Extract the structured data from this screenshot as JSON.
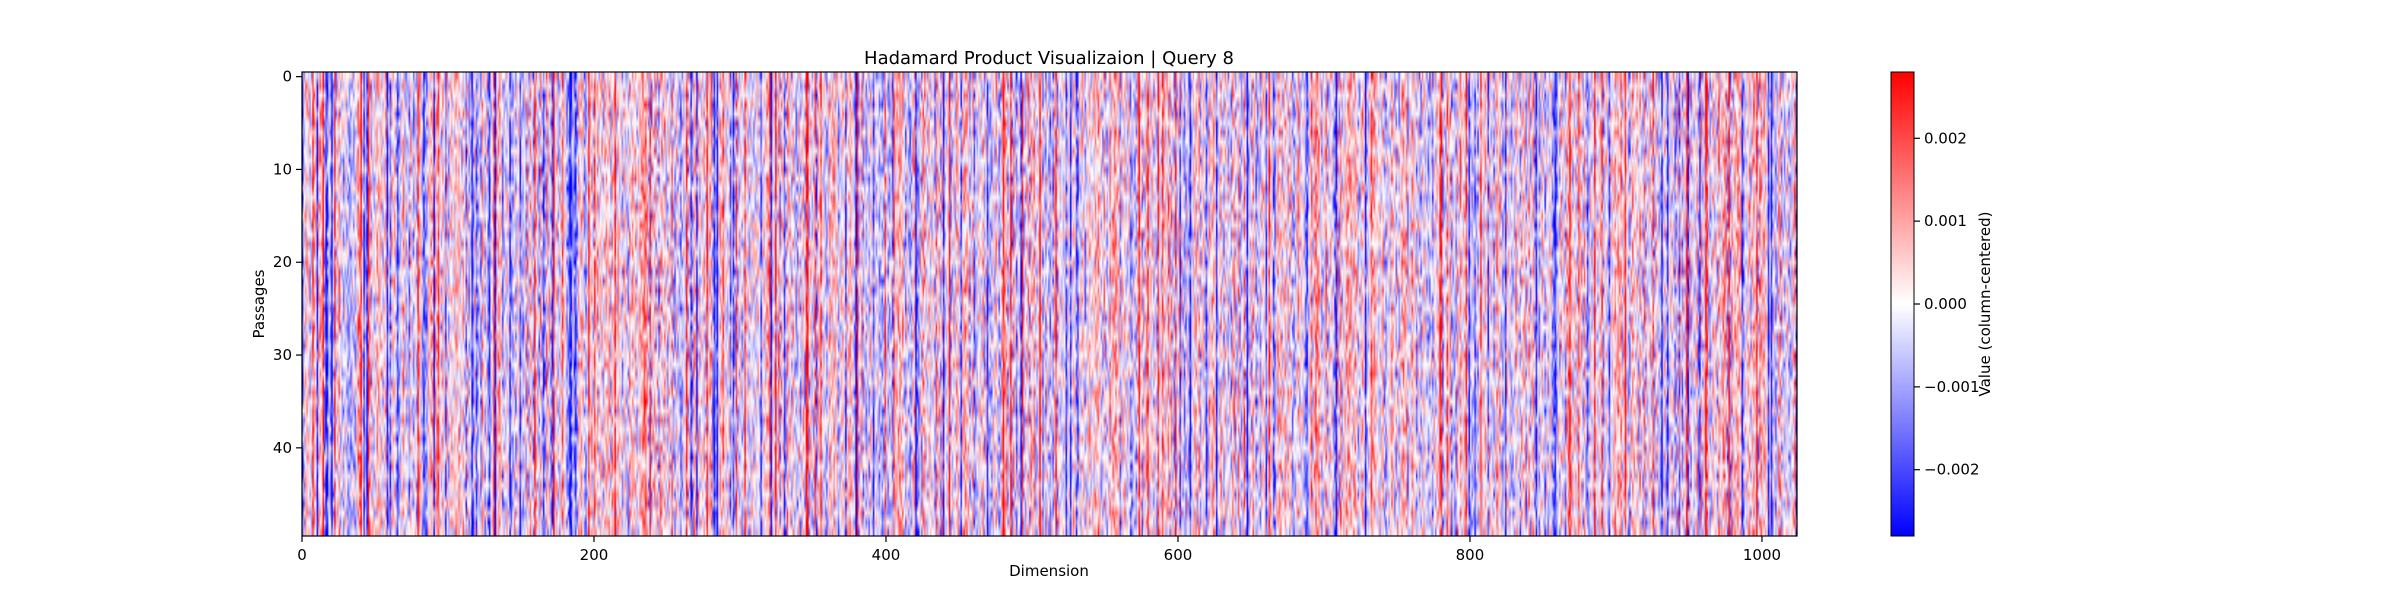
{
  "chart_data": {
    "type": "heatmap",
    "title": "Hadamard Product Visualizaion | Query 8",
    "xlabel": "Dimension",
    "ylabel": "Passages",
    "x_range": [
      0,
      1024
    ],
    "y_range": [
      0,
      50
    ],
    "y_inverted": true,
    "x_ticks": [
      "0",
      "200",
      "400",
      "600",
      "800",
      "1000"
    ],
    "y_ticks": [
      "0",
      "10",
      "20",
      "30",
      "40"
    ],
    "colormap": "bwr",
    "color_low": "#0000ff",
    "color_mid": "#ffffff",
    "color_high": "#ff0000",
    "colorbar": {
      "label": "Value (column-centered)",
      "range": [
        -0.0028,
        0.0028
      ],
      "ticks": [
        "0.002",
        "0.001",
        "0.000",
        "−0.001",
        "−0.002"
      ]
    },
    "grid": false
  }
}
